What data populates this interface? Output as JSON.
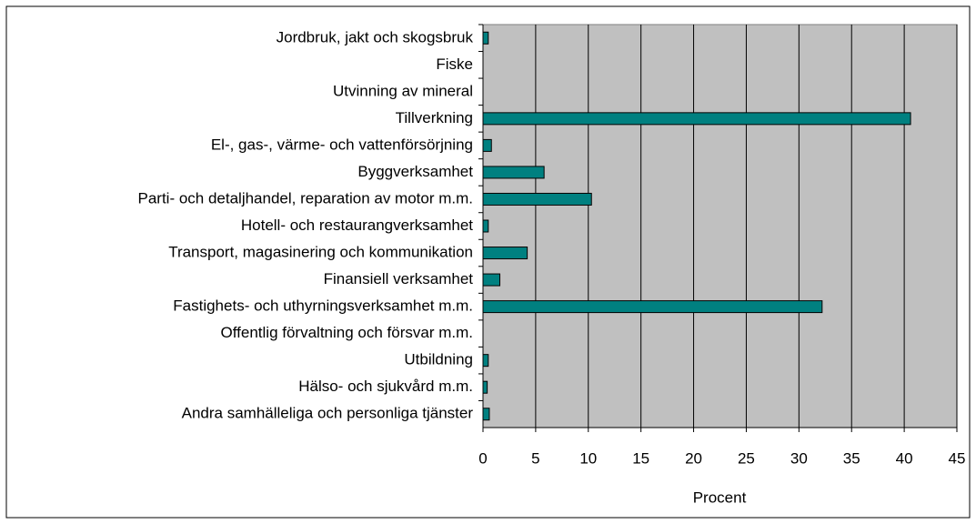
{
  "chart_data": {
    "type": "barh",
    "categories": [
      "Jordbruk, jakt och skogsbruk",
      "Fiske",
      "Utvinning av mineral",
      "Tillverkning",
      "El-, gas-, värme- och vattenförsörjning",
      "Byggverksamhet",
      "Parti- och detaljhandel, reparation av motor m.m.",
      "Hotell- och restaurangverksamhet",
      "Transport, magasinering och kommunikation",
      "Finansiell verksamhet",
      "Fastighets- och uthyrningsverksamhet m.m.",
      "Offentlig förvaltning och försvar m.m.",
      "Utbildning",
      "Hälso- och sjukvård m.m.",
      "Andra samhälleliga och personliga tjänster"
    ],
    "values": [
      0.5,
      0,
      0,
      40.6,
      0.8,
      5.8,
      10.3,
      0.5,
      4.2,
      1.6,
      32.2,
      0,
      0.5,
      0.4,
      0.6
    ],
    "color": "#008080",
    "plot_background": "#c0c0c0",
    "xlabel": "Procent",
    "xlim": [
      0,
      45
    ],
    "xticks": [
      0,
      5,
      10,
      15,
      20,
      25,
      30,
      35,
      40,
      45
    ],
    "grid": true
  }
}
